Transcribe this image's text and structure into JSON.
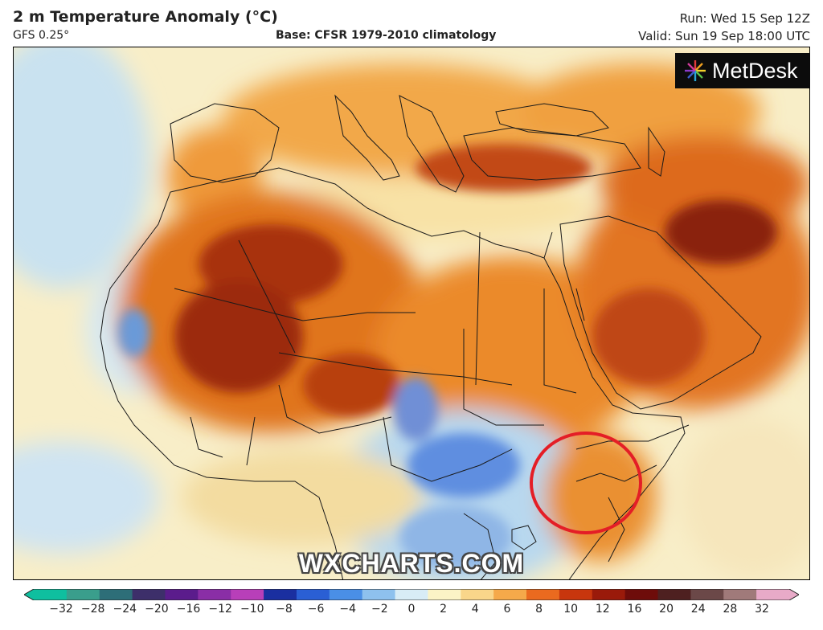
{
  "header": {
    "title": "2 m Temperature Anomaly (°C)",
    "model": "GFS 0.25°",
    "base": "Base: CFSR 1979-2010 climatology",
    "run": "Run: Wed 15 Sep 12Z",
    "valid": "Valid: Sun 19 Sep 18:00 UTC"
  },
  "logo": {
    "text": "MetDesk",
    "icon": "metdesk-star-icon"
  },
  "watermark": "WXCHARTS.COM",
  "colorbar": {
    "ticks": [
      "−32",
      "−28",
      "−24",
      "−20",
      "−16",
      "−12",
      "−10",
      "−8",
      "−6",
      "−4",
      "−2",
      "0",
      "2",
      "4",
      "6",
      "8",
      "10",
      "12",
      "16",
      "20",
      "24",
      "28",
      "32"
    ],
    "colors": [
      "#0fbf9f",
      "#3a9e8c",
      "#2d6e78",
      "#3d2f6a",
      "#5b1c8c",
      "#8a2ea6",
      "#b83fb9",
      "#1a2fa0",
      "#2a5fd4",
      "#4a8fe6",
      "#8ec1ee",
      "#d8ecf6",
      "#fbf3c6",
      "#f9d68a",
      "#f5a94a",
      "#ea6a1f",
      "#c8360d",
      "#9a1a0a",
      "#6e0c0a",
      "#4e2020",
      "#6b4848",
      "#a07a7a",
      "#e8aac8"
    ]
  },
  "map": {
    "region": "Africa, Europe and Middle East",
    "highlight": "red circle around Horn of Africa"
  }
}
